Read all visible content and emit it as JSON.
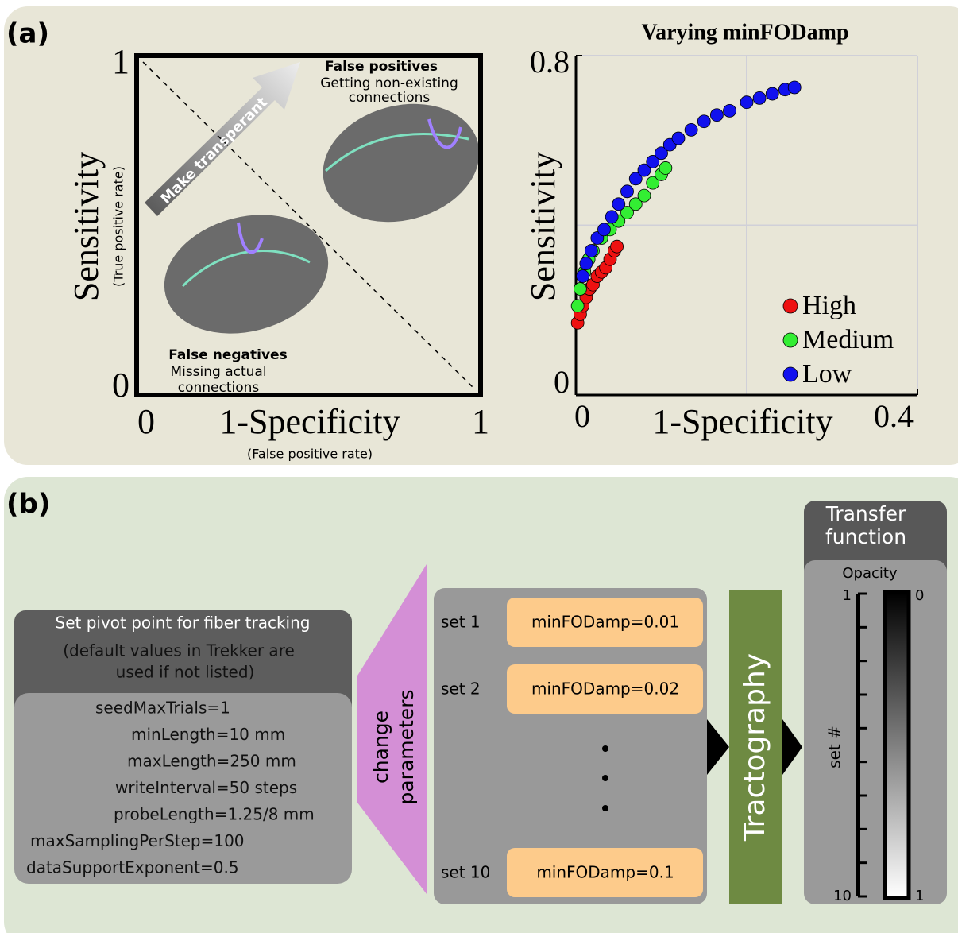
{
  "panel_labels": [
    "(a)",
    "(b)"
  ],
  "chart_data": [
    {
      "type": "roc-schematic",
      "xlabel": "1-Specificity",
      "xlabel_note": "(False positive rate)",
      "ylabel": "Sensitivity",
      "ylabel_note": "(True positive rate)",
      "xlim": [
        0,
        1
      ],
      "ylim": [
        0,
        1
      ],
      "xticks": [
        0,
        1
      ],
      "yticks": [
        0,
        1
      ],
      "arrow_label": "Make transperant",
      "false_positives": {
        "title": "False positives",
        "lines": [
          "Getting non-existing",
          "connections"
        ]
      },
      "false_negatives": {
        "title": "False negatives",
        "lines": [
          "Missing actual",
          "connections"
        ]
      }
    },
    {
      "type": "scatter",
      "title": "Varying minFODamp",
      "xlabel": "1-Specificity",
      "ylabel": "Sensitivity",
      "xlim": [
        0,
        0.4
      ],
      "ylim": [
        0,
        0.8
      ],
      "xticks": [
        0,
        0.4
      ],
      "yticks": [
        0,
        0.8
      ],
      "xgrid": [
        0.2
      ],
      "ygrid": [
        0.4
      ],
      "legend": "lower right",
      "series": [
        {
          "name": "High",
          "color": "#ee1111",
          "x": [
            0.002,
            0.005,
            0.008,
            0.012,
            0.016,
            0.02,
            0.025,
            0.03,
            0.035,
            0.04,
            0.045,
            0.048
          ],
          "values": [
            0.17,
            0.19,
            0.21,
            0.23,
            0.25,
            0.26,
            0.28,
            0.29,
            0.3,
            0.32,
            0.34,
            0.35
          ]
        },
        {
          "name": "Medium",
          "color": "#33ee33",
          "x": [
            0.002,
            0.005,
            0.01,
            0.015,
            0.02,
            0.03,
            0.04,
            0.05,
            0.06,
            0.07,
            0.08,
            0.09,
            0.1,
            0.105
          ],
          "values": [
            0.21,
            0.25,
            0.29,
            0.32,
            0.34,
            0.37,
            0.39,
            0.41,
            0.43,
            0.45,
            0.47,
            0.5,
            0.52,
            0.535
          ]
        },
        {
          "name": "Low",
          "color": "#1111ee",
          "x": [
            0.008,
            0.012,
            0.018,
            0.025,
            0.033,
            0.042,
            0.05,
            0.06,
            0.07,
            0.08,
            0.09,
            0.1,
            0.11,
            0.12,
            0.135,
            0.15,
            0.165,
            0.18,
            0.2,
            0.215,
            0.23,
            0.245,
            0.256
          ],
          "values": [
            0.28,
            0.31,
            0.34,
            0.37,
            0.39,
            0.42,
            0.45,
            0.48,
            0.51,
            0.53,
            0.55,
            0.57,
            0.59,
            0.605,
            0.625,
            0.645,
            0.66,
            0.67,
            0.69,
            0.7,
            0.71,
            0.72,
            0.725
          ]
        }
      ]
    }
  ],
  "panel_b": {
    "pivot": {
      "title": "Set pivot point for fiber tracking",
      "note": [
        "(default values in Trekker are",
        "used if not listed)"
      ],
      "params": [
        "seedMaxTrials=1",
        "minLength=10 mm",
        "maxLength=250 mm",
        "writeInterval=50 steps",
        "probeLength=1.25/8 mm",
        "maxSamplingPerStep=100",
        "dataSupportExponent=0.5"
      ]
    },
    "change_label": [
      "change",
      "parameters"
    ],
    "parameter_sets": [
      {
        "label": "set 1",
        "value": "minFODamp=0.01"
      },
      {
        "label": "set 2",
        "value": "minFODamp=0.02"
      },
      {
        "label": "set 10",
        "value": "minFODamp=0.1"
      }
    ],
    "tractography": "Tractography",
    "transfer_function": {
      "title": [
        "Transfer",
        "function"
      ],
      "opacity_label": "Opacity",
      "axis_label": "set #",
      "set_range": [
        1,
        10
      ],
      "opacity_range": [
        0,
        1
      ]
    }
  }
}
